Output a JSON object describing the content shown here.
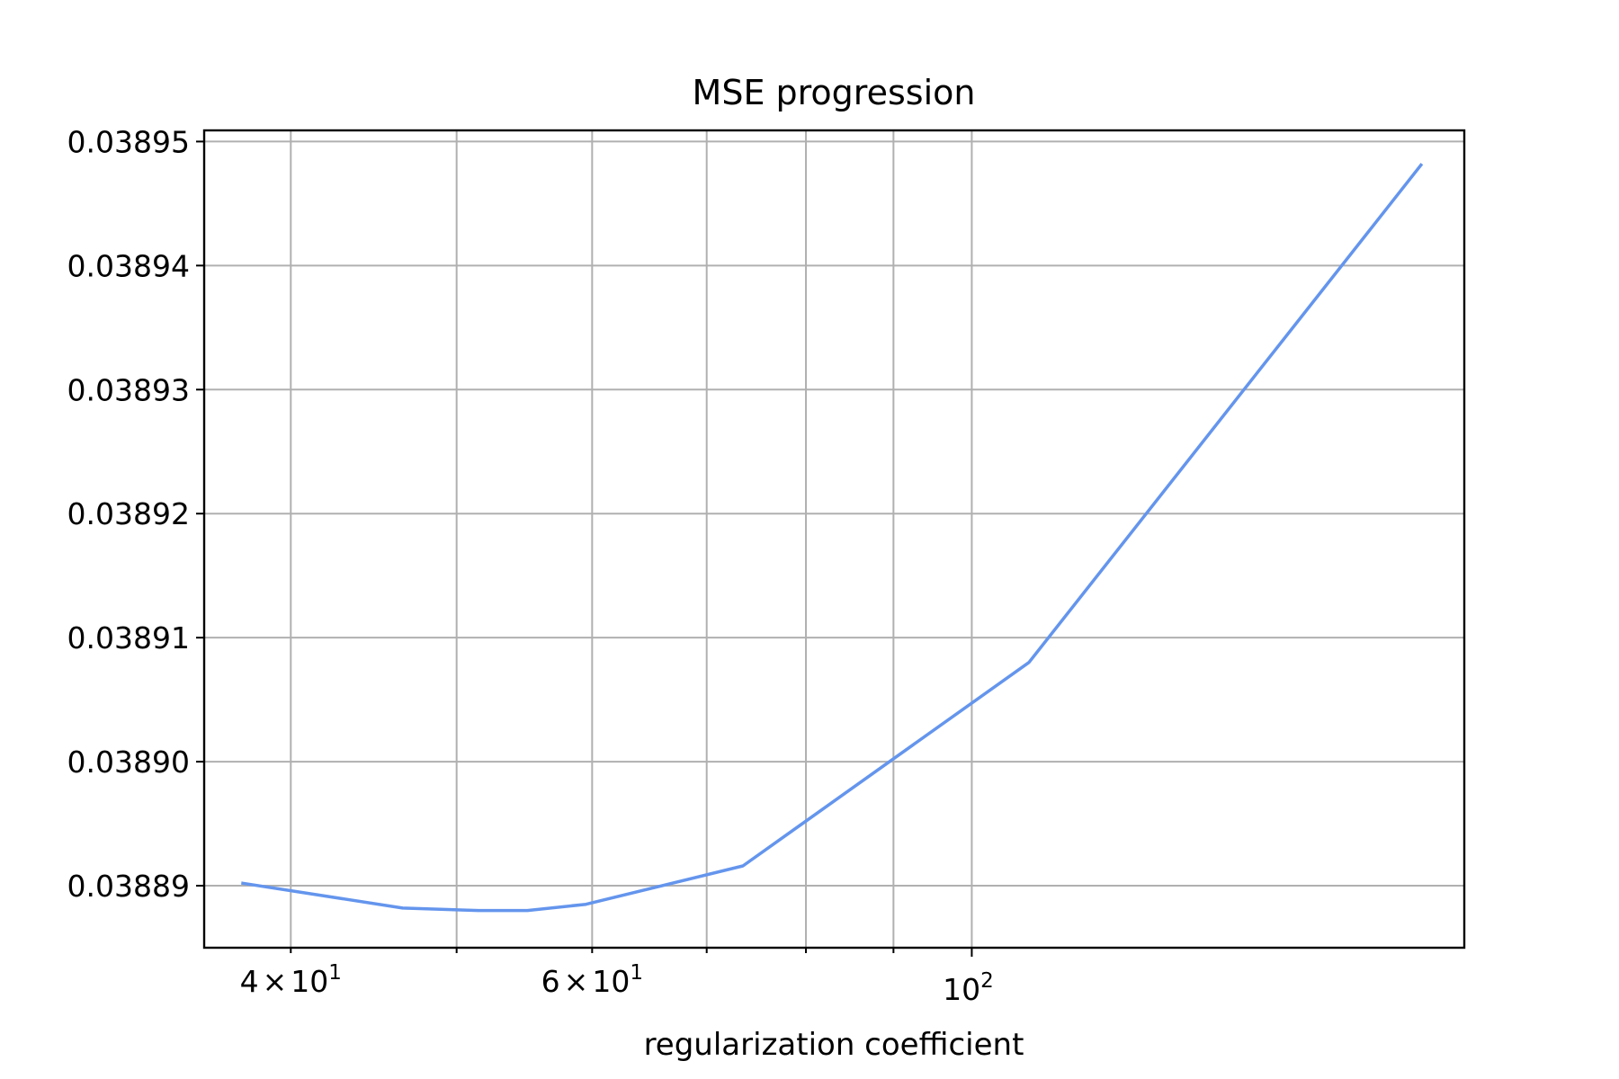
{
  "chart_data": {
    "type": "line",
    "title": "MSE progression",
    "xlabel": "regularization coefficient",
    "ylabel": "",
    "x_scale": "log",
    "xlim": [
      35.6,
      194
    ],
    "ylim": [
      0.038885,
      0.0389509
    ],
    "grid": true,
    "x_major_ticks": [
      {
        "value": 100,
        "label": "10",
        "exponent": "2",
        "kind": "pow"
      }
    ],
    "x_minor_ticks": [
      {
        "value": 40,
        "mantissa": "4",
        "base": "10",
        "exponent": "1",
        "labeled": true
      },
      {
        "value": 50,
        "labeled": false
      },
      {
        "value": 60,
        "mantissa": "6",
        "base": "10",
        "exponent": "1",
        "labeled": true
      },
      {
        "value": 70,
        "labeled": false
      },
      {
        "value": 80,
        "labeled": false
      },
      {
        "value": 90,
        "labeled": false
      }
    ],
    "times_sign": "×",
    "y_ticks": [
      {
        "value": 0.03889,
        "label": "0.03889"
      },
      {
        "value": 0.0389,
        "label": "0.03890"
      },
      {
        "value": 0.03891,
        "label": "0.03891"
      },
      {
        "value": 0.03892,
        "label": "0.03892"
      },
      {
        "value": 0.03893,
        "label": "0.03893"
      },
      {
        "value": 0.03894,
        "label": "0.03894"
      },
      {
        "value": 0.03895,
        "label": "0.03895"
      }
    ],
    "series": [
      {
        "color": "#6495ED",
        "x": [
          37.5,
          46.5,
          51.5,
          55.0,
          59.5,
          73.5,
          108.0,
          183.0
        ],
        "y": [
          0.0388902,
          0.0388882,
          0.038888,
          0.038888,
          0.0388885,
          0.0388916,
          0.038908,
          0.0389481
        ]
      }
    ]
  }
}
